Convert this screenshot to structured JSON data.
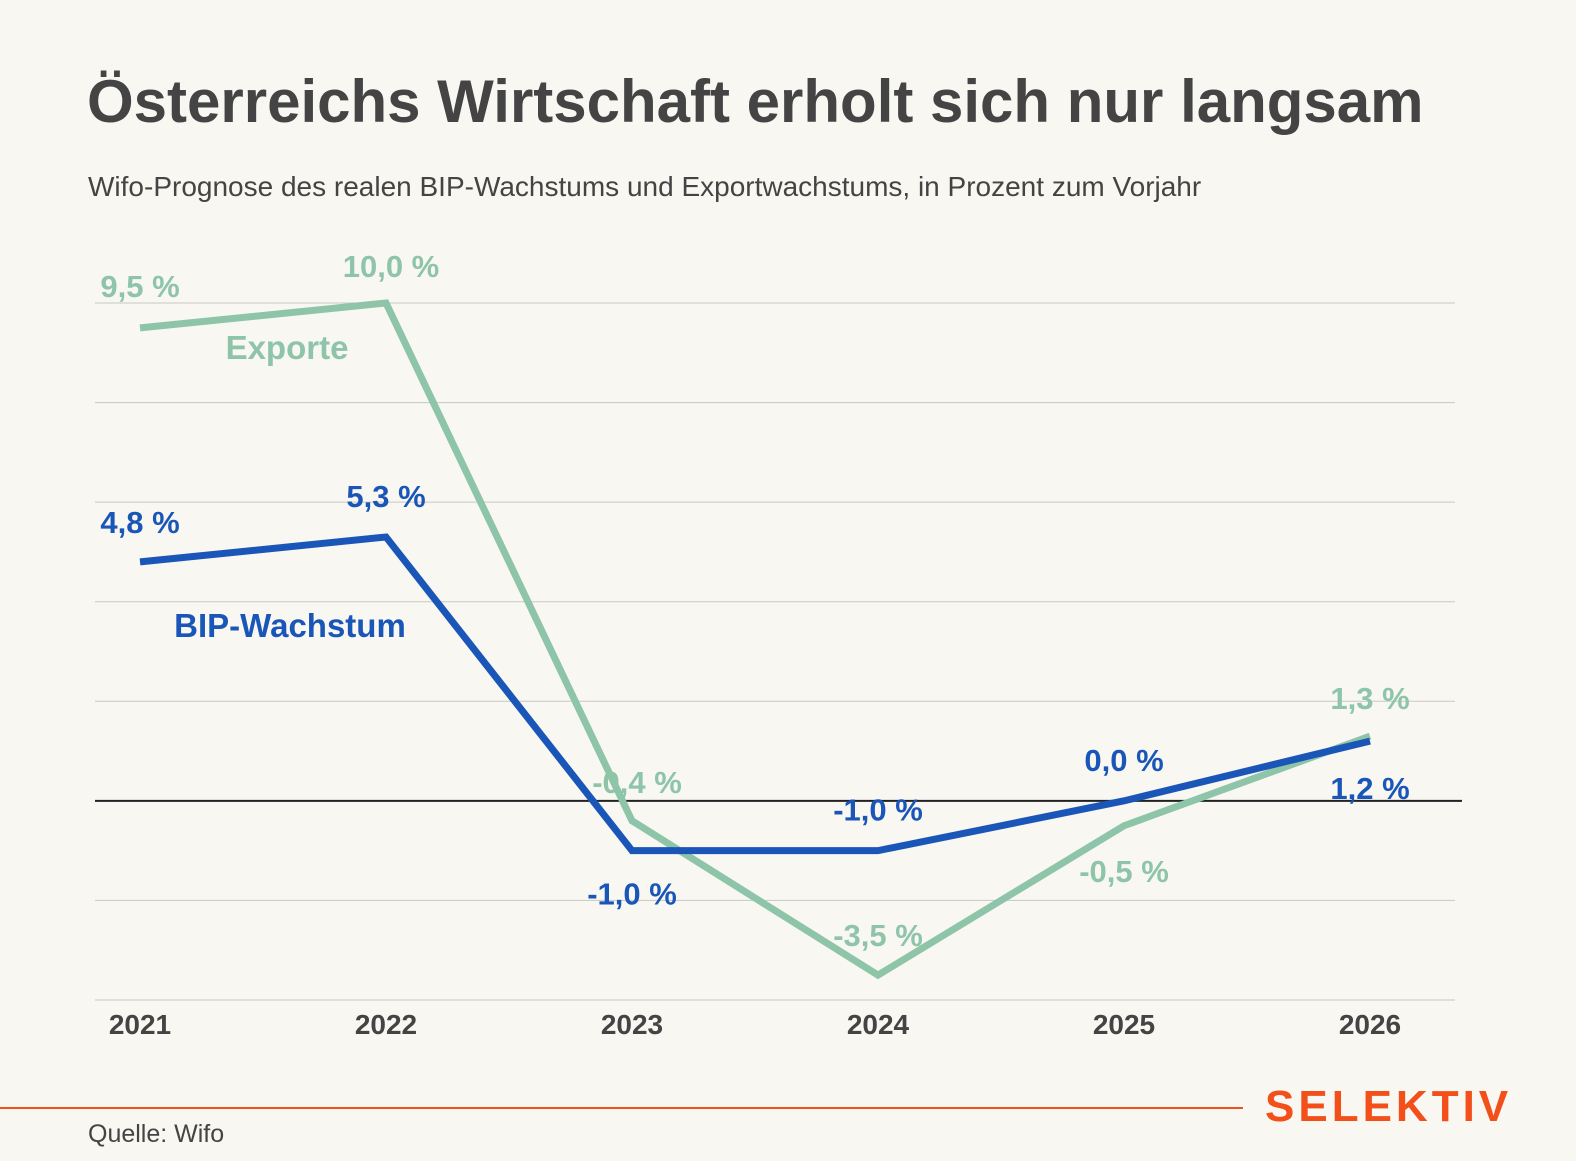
{
  "title": "Österreichs Wirtschaft erholt sich nur langsam",
  "subtitle": "Wifo-Prognose des realen BIP-Wachstums und Exportwachstums, in Prozent zum Vorjahr",
  "source": "Quelle: Wifo",
  "brand": "SELEKTIV",
  "colors": {
    "background": "#f8f7f1",
    "exports": "#8ec4a8",
    "gdp": "#1a56b8",
    "text": "#444444",
    "zero_line": "#222222",
    "grid": "#c9c8c2",
    "brand": "#f24f1a"
  },
  "chart_data": {
    "type": "line",
    "categories": [
      "2021",
      "2022",
      "2023",
      "2024",
      "2025",
      "2026"
    ],
    "ylim": [
      -4,
      10
    ],
    "y_gridlines": [
      -4,
      -2,
      0,
      2,
      4,
      6,
      8,
      10
    ],
    "grid": true,
    "legend": "inline labels",
    "series": [
      {
        "name": "Exporte",
        "color": "#8ec4a8",
        "values": [
          9.5,
          10.0,
          -0.4,
          -3.5,
          -0.5,
          1.3
        ],
        "labels": [
          "9,5 %",
          "10,0 %",
          "-0,4 %",
          "-3,5 %",
          "-0,5 %",
          "1,3 %"
        ]
      },
      {
        "name": "BIP-Wachstum",
        "color": "#1a56b8",
        "values": [
          4.8,
          5.3,
          -1.0,
          -1.0,
          0.0,
          1.2
        ],
        "labels": [
          "4,8 %",
          "5,3 %",
          "-1,0 %",
          "-1,0 %",
          "0,0 %",
          "1,2 %"
        ]
      }
    ]
  }
}
